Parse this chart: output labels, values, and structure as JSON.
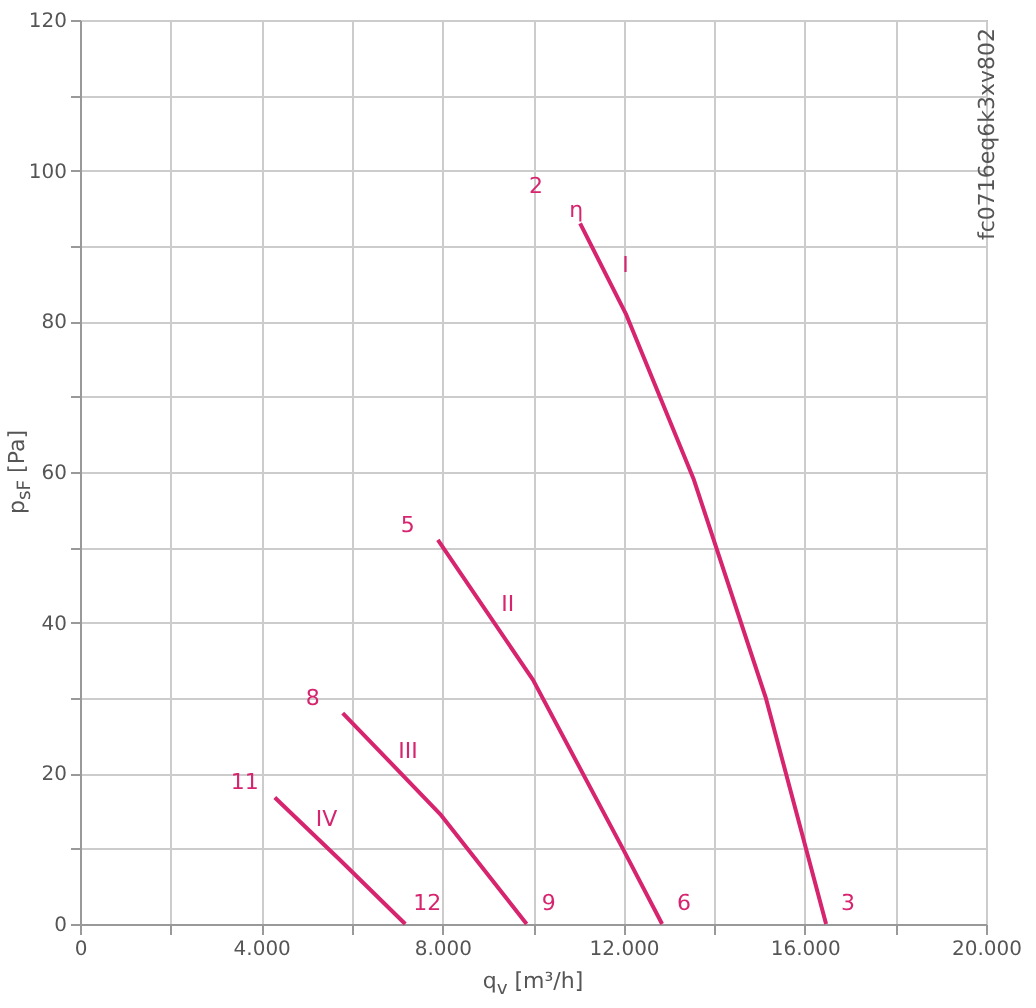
{
  "chart_data": {
    "type": "line",
    "xlabel": "q$_{v}$ [m³/h]",
    "ylabel": "p$_{sF}$ [Pa]",
    "xlim": [
      0,
      20000
    ],
    "ylim": [
      0,
      120
    ],
    "xticks": [
      0,
      {
        "value": 2000,
        "label": null
      },
      {
        "value": 4000,
        "label": "4.000"
      },
      {
        "value": 6000,
        "label": null
      },
      {
        "value": 8000,
        "label": "8.000"
      },
      {
        "value": 10000,
        "label": null
      },
      {
        "value": 12000,
        "label": "12.000"
      },
      {
        "value": 14000,
        "label": null
      },
      {
        "value": 16000,
        "label": "16.000"
      },
      {
        "value": 18000,
        "label": null
      },
      {
        "value": 20000,
        "label": "20.000"
      }
    ],
    "yticks": [
      0,
      {
        "value": 10,
        "label": null
      },
      20,
      {
        "value": 30,
        "label": null
      },
      40,
      {
        "value": 50,
        "label": null
      },
      60,
      {
        "value": 70,
        "label": null
      },
      80,
      {
        "value": 90,
        "label": null
      },
      100,
      {
        "value": 110,
        "label": null
      },
      120
    ],
    "grid": true,
    "marker": "none",
    "line_style": "solid",
    "series": [
      {
        "color": "#d6246e",
        "x": [
          11040,
          12050,
          13550,
          15140,
          16470
        ],
        "values": [
          93,
          81,
          59,
          30,
          0
        ]
      },
      {
        "color": "#d6246e",
        "x": [
          7900,
          10000,
          12000,
          12850
        ],
        "values": [
          51,
          32.4,
          9.8,
          0
        ]
      },
      {
        "color": "#d6246e",
        "x": [
          5800,
          7950,
          9860
        ],
        "values": [
          28,
          14.6,
          0
        ]
      },
      {
        "color": "#d6246e",
        "x": [
          4300,
          5740,
          7180
        ],
        "values": [
          16.8,
          8.5,
          0
        ]
      }
    ],
    "annotations": [
      "fc0716eq6k3xv802",
      {
        "text": "η",
        "x": 11040,
        "y": 93
      },
      {
        "text": "I",
        "x": 11600,
        "y": 86.3
      },
      {
        "text": "II",
        "x": 9000,
        "y": 41.3
      },
      {
        "text": "III",
        "x": 6800,
        "y": 21.8
      },
      {
        "text": "IV",
        "x": 5000,
        "y": 12.8
      },
      {
        "text": "2",
        "x": 11040,
        "y": 93
      },
      {
        "text": "3",
        "x": 16470,
        "y": 0
      },
      {
        "text": "5",
        "x": 7900,
        "y": 51
      },
      {
        "text": "6",
        "x": 12850,
        "y": 0
      },
      {
        "text": "8",
        "x": 5800,
        "y": 28
      },
      {
        "text": "9",
        "x": 9860,
        "y": 0
      },
      {
        "text": "11",
        "x": 4300,
        "y": 16.8
      },
      {
        "text": "12",
        "x": 7180,
        "y": 0
      }
    ]
  }
}
